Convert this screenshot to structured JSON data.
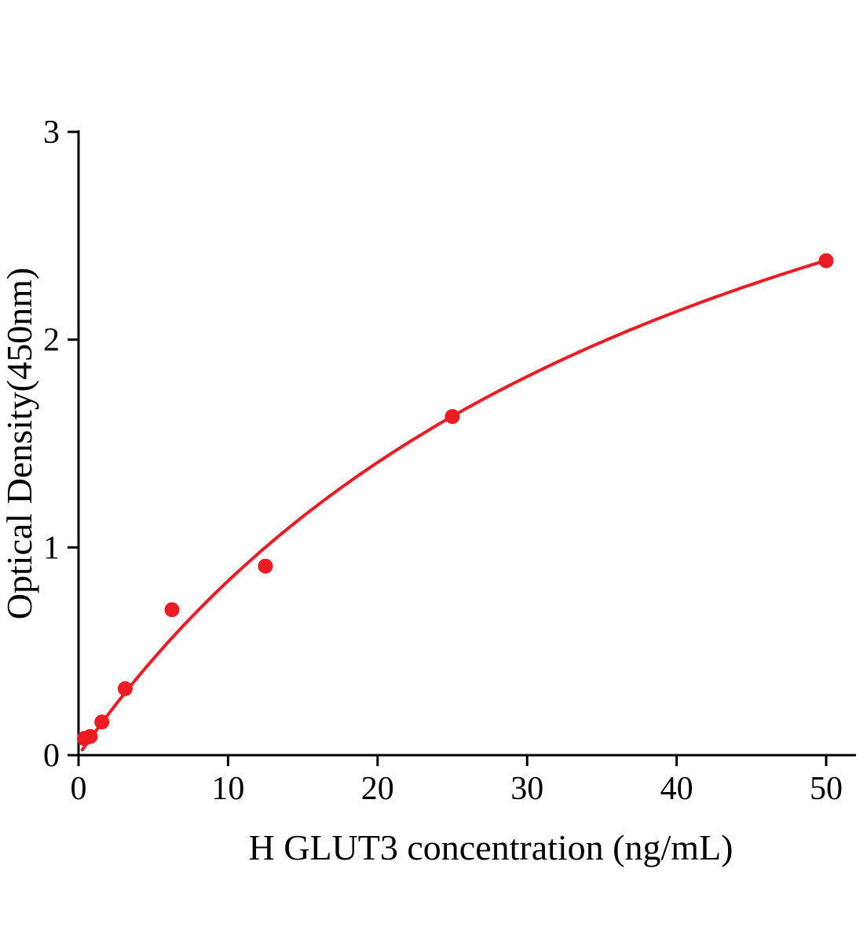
{
  "chart_data": {
    "type": "scatter",
    "title": "",
    "xlabel": "H GLUT3 concentration (ng/mL)",
    "ylabel": "Optical Density(450nm)",
    "xlim": [
      0,
      52
    ],
    "ylim": [
      0,
      3
    ],
    "xticks": [
      0,
      10,
      20,
      30,
      40,
      50
    ],
    "yticks": [
      0,
      1,
      2,
      3
    ],
    "grid": false,
    "legend": false,
    "point_color": "#ed1c24",
    "curve_color": "#ed1c24",
    "axis_color": "#000000",
    "points": [
      {
        "x": 0.39,
        "y": 0.08
      },
      {
        "x": 0.78,
        "y": 0.09
      },
      {
        "x": 1.56,
        "y": 0.16
      },
      {
        "x": 3.12,
        "y": 0.32
      },
      {
        "x": 6.25,
        "y": 0.7
      },
      {
        "x": 12.5,
        "y": 0.91
      },
      {
        "x": 25,
        "y": 1.63
      },
      {
        "x": 50,
        "y": 2.38
      }
    ],
    "fit_curve": {
      "model": "michaelis-menten",
      "formula": "y = Vmax*x/(Km+x)",
      "vmax": 4.41,
      "km": 42.6,
      "x_start": 0.25,
      "x_end": 50
    }
  }
}
